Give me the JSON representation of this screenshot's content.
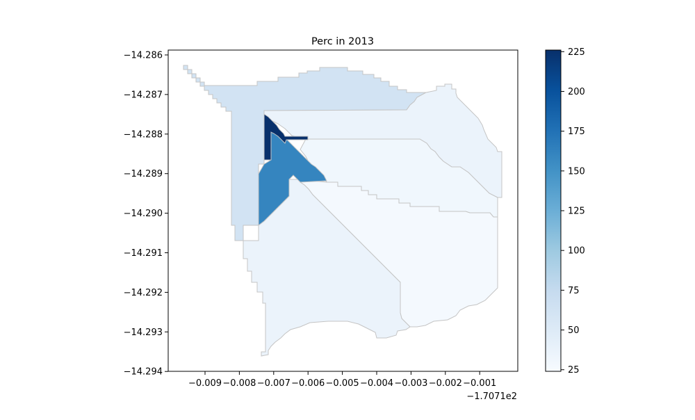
{
  "chart_data": {
    "type": "choropleth",
    "title": "Perc in 2013",
    "x_ticks": [
      "−0.009",
      "−0.008",
      "−0.007",
      "−0.006",
      "−0.005",
      "−0.004",
      "−0.003",
      "−0.002",
      "−0.001"
    ],
    "x_offset_label": "−1.7071e2",
    "y_ticks": [
      "−14.286",
      "−14.287",
      "−14.288",
      "−14.289",
      "−14.290",
      "−14.291",
      "−14.292",
      "−14.293",
      "−14.294"
    ],
    "colorbar": {
      "colormap": "Blues",
      "range": [
        24,
        226
      ],
      "ticks": [
        "25",
        "50",
        "75",
        "100",
        "125",
        "150",
        "175",
        "200",
        "225"
      ],
      "tick_values": [
        25,
        50,
        75,
        100,
        125,
        150,
        175,
        200,
        225
      ]
    },
    "regions": [
      {
        "id": "north-west",
        "value": 62
      },
      {
        "id": "north-east",
        "value": 36
      },
      {
        "id": "east",
        "value": 31
      },
      {
        "id": "central",
        "value": 27
      },
      {
        "id": "south-west",
        "value": 36
      },
      {
        "id": "wedge",
        "value": 160
      },
      {
        "id": "spike",
        "value": 226
      }
    ]
  }
}
